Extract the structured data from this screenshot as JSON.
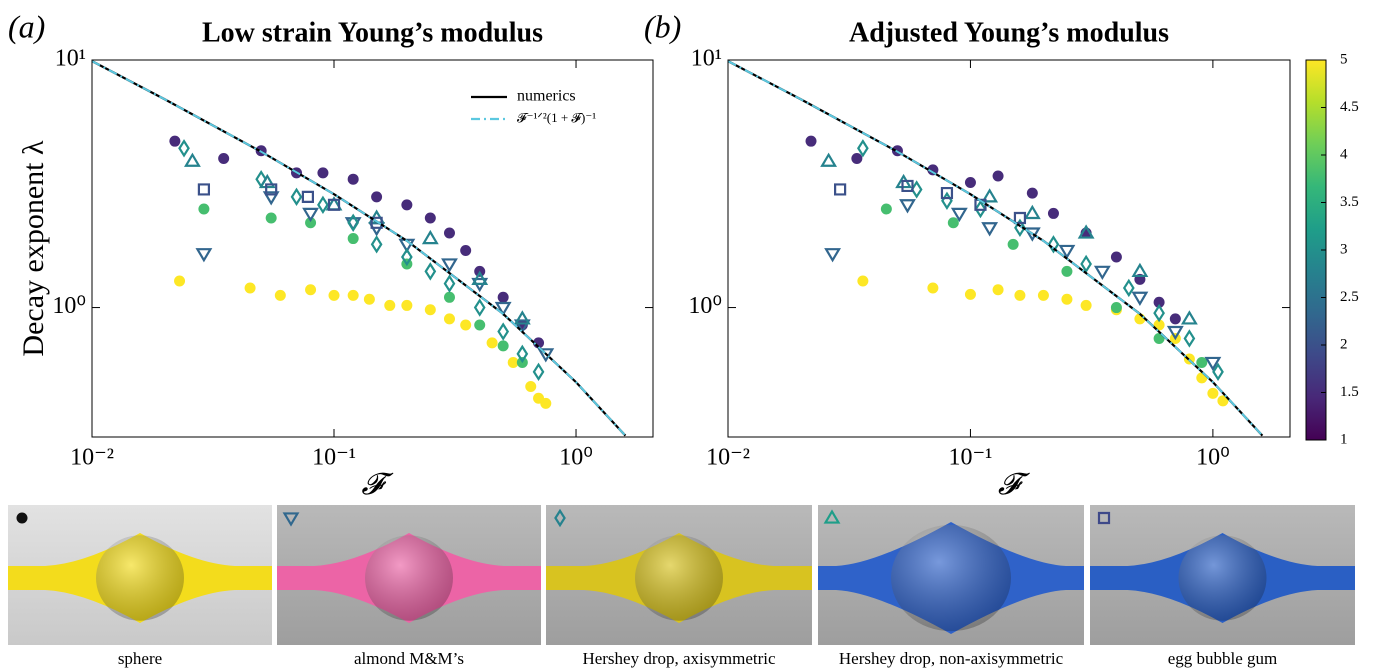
{
  "chart_data": [
    {
      "type": "scatter",
      "panel_label": "(a)",
      "title": "Low strain Young’s modulus",
      "xlabel": "𝓕",
      "ylabel": "Decay exponent  λ",
      "xscale": "log",
      "yscale": "log",
      "xlim": [
        0.01,
        2.08
      ],
      "ylim": [
        0.3,
        10
      ],
      "xticks": [
        {
          "value": 0.01,
          "label": "10⁻²"
        },
        {
          "value": 0.1,
          "label": "10⁻¹"
        },
        {
          "value": 1,
          "label": "10⁰"
        }
      ],
      "yticks": [
        {
          "value": 1,
          "label": "10⁰"
        },
        {
          "value": 10,
          "label": "10¹"
        }
      ],
      "legend": "upper right",
      "series": [
        {
          "name": "numerics",
          "kind": "line",
          "color": "#000000",
          "dash": "solid",
          "x": [
            0.01,
            0.02,
            0.05,
            0.1,
            0.2,
            0.5,
            1,
            1.6
          ],
          "y": [
            9.9,
            6.93,
            4.26,
            2.87,
            1.86,
            0.943,
            0.5,
            0.304
          ]
        },
        {
          "name": "𝓕⁻¹ᐟ²(1 + 𝓕)⁻¹",
          "kind": "line",
          "color": "#5bc8e0",
          "dash": "dashdot",
          "x": [
            0.01,
            0.02,
            0.05,
            0.1,
            0.2,
            0.5,
            1,
            1.6
          ],
          "y": [
            9.9,
            6.93,
            4.26,
            2.87,
            1.86,
            0.943,
            0.5,
            0.304
          ]
        },
        {
          "kind": "points",
          "marker": "circle",
          "c": 5,
          "x": [
            0.023,
            0.045,
            0.06,
            0.08,
            0.1,
            0.12,
            0.14,
            0.17,
            0.2,
            0.25,
            0.3,
            0.35,
            0.45,
            0.55,
            0.65,
            0.7,
            0.75
          ],
          "y": [
            1.28,
            1.2,
            1.12,
            1.18,
            1.12,
            1.12,
            1.08,
            1.02,
            1.02,
            0.98,
            0.9,
            0.85,
            0.72,
            0.6,
            0.48,
            0.43,
            0.41
          ]
        },
        {
          "kind": "points",
          "marker": "circle",
          "c": 1.5,
          "x": [
            0.022,
            0.035,
            0.05,
            0.07,
            0.09,
            0.12,
            0.15,
            0.2,
            0.25,
            0.3,
            0.35,
            0.4,
            0.5,
            0.6,
            0.7
          ],
          "y": [
            4.7,
            4.0,
            4.3,
            3.5,
            3.5,
            3.3,
            2.8,
            2.6,
            2.3,
            2.0,
            1.7,
            1.4,
            1.1,
            0.85,
            0.72
          ]
        },
        {
          "kind": "points",
          "marker": "circle",
          "c": 3.8,
          "x": [
            0.029,
            0.055,
            0.08,
            0.12,
            0.2,
            0.3,
            0.4,
            0.5,
            0.6
          ],
          "y": [
            2.5,
            2.3,
            2.2,
            1.9,
            1.5,
            1.1,
            0.85,
            0.7,
            0.6
          ]
        },
        {
          "kind": "points",
          "marker": "triangle-down",
          "c": 2.3,
          "x": [
            0.029,
            0.055,
            0.08,
            0.12,
            0.15,
            0.2,
            0.3,
            0.4,
            0.5,
            0.6,
            0.75
          ],
          "y": [
            1.65,
            2.8,
            2.4,
            2.2,
            2.1,
            1.8,
            1.5,
            1.25,
            1.0,
            0.85,
            0.65
          ]
        },
        {
          "kind": "points",
          "marker": "diamond",
          "c": 3,
          "x": [
            0.024,
            0.05,
            0.07,
            0.09,
            0.12,
            0.15,
            0.2,
            0.25,
            0.3,
            0.4,
            0.5,
            0.6,
            0.7
          ],
          "y": [
            4.4,
            3.3,
            2.8,
            2.6,
            2.2,
            1.8,
            1.6,
            1.4,
            1.25,
            1.0,
            0.8,
            0.65,
            0.55
          ]
        },
        {
          "kind": "points",
          "marker": "triangle-up",
          "c": 2.8,
          "x": [
            0.026,
            0.053,
            0.1,
            0.15,
            0.25,
            0.4,
            0.6
          ],
          "y": [
            3.9,
            3.2,
            2.6,
            2.3,
            1.9,
            1.3,
            0.9
          ]
        },
        {
          "kind": "points",
          "marker": "square",
          "c": 2,
          "x": [
            0.029,
            0.055,
            0.078,
            0.1,
            0.15
          ],
          "y": [
            3.0,
            3.0,
            2.8,
            2.6,
            2.2
          ]
        }
      ]
    },
    {
      "type": "scatter",
      "panel_label": "(b)",
      "title": "Adjusted Young’s modulus",
      "xlabel": "𝓕",
      "xscale": "log",
      "yscale": "log",
      "xlim": [
        0.01,
        2.08
      ],
      "ylim": [
        0.3,
        10
      ],
      "xticks": [
        {
          "value": 0.01,
          "label": "10⁻²"
        },
        {
          "value": 0.1,
          "label": "10⁻¹"
        },
        {
          "value": 1,
          "label": "10⁰"
        }
      ],
      "yticks": [
        {
          "value": 1,
          "label": "10⁰"
        },
        {
          "value": 10,
          "label": "10¹"
        }
      ],
      "series": [
        {
          "kind": "line",
          "color": "#000000",
          "dash": "solid",
          "x": [
            0.01,
            0.02,
            0.05,
            0.1,
            0.2,
            0.5,
            1,
            1.6
          ],
          "y": [
            9.9,
            6.93,
            4.26,
            2.87,
            1.86,
            0.943,
            0.5,
            0.304
          ]
        },
        {
          "kind": "line",
          "color": "#5bc8e0",
          "dash": "dashdot",
          "x": [
            0.01,
            0.02,
            0.05,
            0.1,
            0.2,
            0.5,
            1,
            1.6
          ],
          "y": [
            9.9,
            6.93,
            4.26,
            2.87,
            1.86,
            0.943,
            0.5,
            0.304
          ]
        },
        {
          "kind": "points",
          "marker": "circle",
          "c": 5,
          "x": [
            0.036,
            0.07,
            0.1,
            0.13,
            0.16,
            0.2,
            0.25,
            0.3,
            0.4,
            0.5,
            0.6,
            0.7,
            0.8,
            0.9,
            1.0,
            1.1
          ],
          "y": [
            1.28,
            1.2,
            1.13,
            1.18,
            1.12,
            1.12,
            1.08,
            1.02,
            0.98,
            0.9,
            0.85,
            0.75,
            0.62,
            0.52,
            0.45,
            0.42
          ]
        },
        {
          "kind": "points",
          "marker": "circle",
          "c": 1.5,
          "x": [
            0.022,
            0.034,
            0.05,
            0.07,
            0.1,
            0.13,
            0.18,
            0.22,
            0.3,
            0.4,
            0.5,
            0.6,
            0.7
          ],
          "y": [
            4.7,
            4.0,
            4.3,
            3.6,
            3.2,
            3.4,
            2.9,
            2.4,
            2.0,
            1.6,
            1.3,
            1.05,
            0.9
          ]
        },
        {
          "kind": "points",
          "marker": "circle",
          "c": 3.8,
          "x": [
            0.045,
            0.085,
            0.15,
            0.25,
            0.4,
            0.6,
            0.9
          ],
          "y": [
            2.5,
            2.2,
            1.8,
            1.4,
            1.0,
            0.75,
            0.6
          ]
        },
        {
          "kind": "points",
          "marker": "triangle-down",
          "c": 2.3,
          "x": [
            0.027,
            0.055,
            0.09,
            0.12,
            0.18,
            0.25,
            0.35,
            0.5,
            0.7,
            1.0
          ],
          "y": [
            1.65,
            2.6,
            2.4,
            2.1,
            2.0,
            1.7,
            1.4,
            1.1,
            0.8,
            0.6
          ]
        },
        {
          "kind": "points",
          "marker": "diamond",
          "c": 3,
          "x": [
            0.036,
            0.06,
            0.08,
            0.11,
            0.16,
            0.22,
            0.3,
            0.45,
            0.6,
            0.8,
            1.05
          ],
          "y": [
            4.4,
            3.0,
            2.7,
            2.5,
            2.1,
            1.8,
            1.5,
            1.2,
            0.95,
            0.75,
            0.55
          ]
        },
        {
          "kind": "points",
          "marker": "triangle-up",
          "c": 2.8,
          "x": [
            0.026,
            0.053,
            0.12,
            0.18,
            0.3,
            0.5,
            0.8
          ],
          "y": [
            3.9,
            3.2,
            2.8,
            2.4,
            2.0,
            1.4,
            0.9
          ]
        },
        {
          "kind": "points",
          "marker": "square",
          "c": 2,
          "x": [
            0.029,
            0.055,
            0.08,
            0.11,
            0.16
          ],
          "y": [
            3.0,
            3.1,
            2.9,
            2.6,
            2.3
          ]
        }
      ]
    }
  ],
  "colorbar": {
    "lim": [
      1,
      5
    ],
    "ticks": [
      1,
      1.5,
      2,
      2.5,
      3,
      3.5,
      4,
      4.5,
      5
    ],
    "colors": [
      "#440154",
      "#482878",
      "#3e4989",
      "#31688e",
      "#26828e",
      "#1f9e89",
      "#35b779",
      "#6ece58",
      "#b5de2b",
      "#fde725"
    ]
  },
  "photos": [
    {
      "caption": "sphere"
    },
    {
      "caption": "almond M&M’s"
    },
    {
      "caption": "Hershey drop, axisymmetric"
    },
    {
      "caption": "Hershey drop, non-axisymmetric"
    },
    {
      "caption": "egg bubble gum"
    }
  ]
}
